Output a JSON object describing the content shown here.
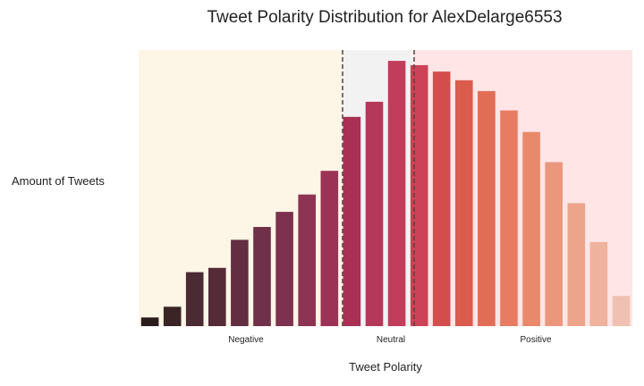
{
  "chart_data": {
    "type": "bar",
    "title": "Tweet Polarity Distribution for AlexDelarge6553",
    "xlabel": "Tweet Polarity",
    "ylabel": "Amount of Tweets",
    "region_labels": [
      "Negative",
      "Neutral",
      "Positive"
    ],
    "values": [
      4,
      9,
      25,
      27,
      40,
      46,
      53,
      61,
      72,
      97,
      104,
      123,
      121,
      118,
      114,
      109,
      100,
      90,
      76,
      57,
      39,
      14
    ],
    "bar_colors": [
      "#2b1d1e",
      "#3a2426",
      "#4a2a33",
      "#552b38",
      "#632d42",
      "#70304a",
      "#7d314f",
      "#8d3354",
      "#9c3356",
      "#aa2f55",
      "#b5375a",
      "#c23c5c",
      "#cc4257",
      "#d44d4d",
      "#db5b4c",
      "#e26d57",
      "#e77c62",
      "#e9896c",
      "#ea977c",
      "#eca48a",
      "#eeb29d",
      "#f0c1b2"
    ],
    "region_colors": [
      "#fdf5e6",
      "#f2f2f2",
      "#ffe5e5"
    ],
    "threshold_line_color": "#5a4040",
    "ylim": [
      0,
      128
    ],
    "grid": false,
    "legend": "none"
  }
}
